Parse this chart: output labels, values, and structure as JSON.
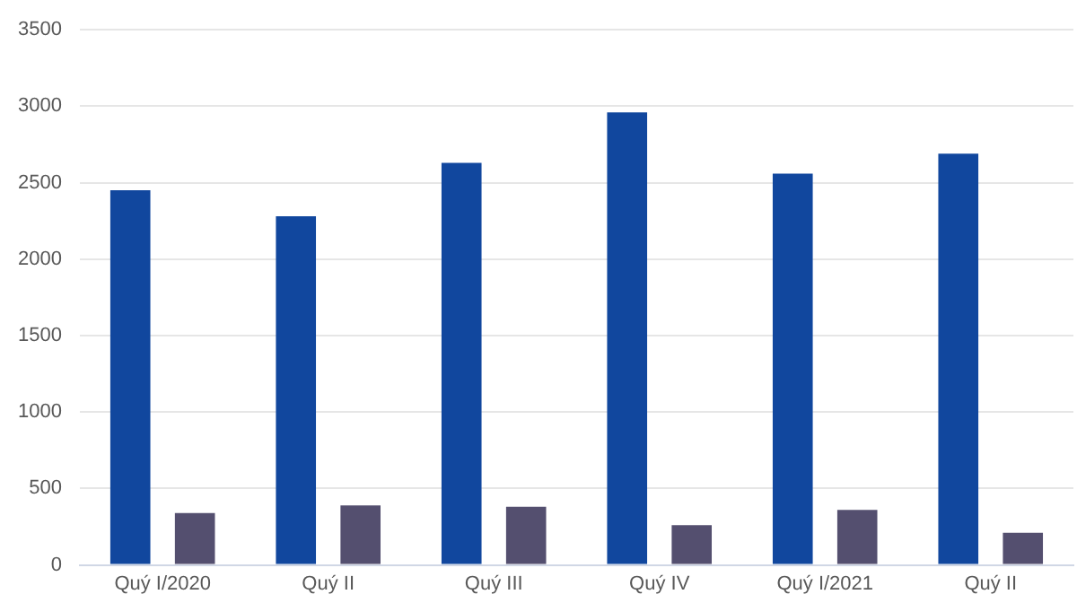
{
  "chart_data": {
    "type": "bar",
    "categories": [
      "Quý I/2020",
      "Quý II",
      "Quý III",
      "Quý IV",
      "Quý I/2021",
      "Quý II"
    ],
    "series": [
      {
        "color": "#11479e",
        "values": [
          2450,
          2280,
          2630,
          2960,
          2560,
          2690
        ]
      },
      {
        "color": "#544f6f",
        "values": [
          340,
          390,
          380,
          260,
          360,
          210
        ]
      }
    ],
    "ylim": [
      0,
      3500
    ],
    "yticks": [
      0,
      500,
      1000,
      1500,
      2000,
      2500,
      3000,
      3500
    ],
    "grid": "y"
  }
}
